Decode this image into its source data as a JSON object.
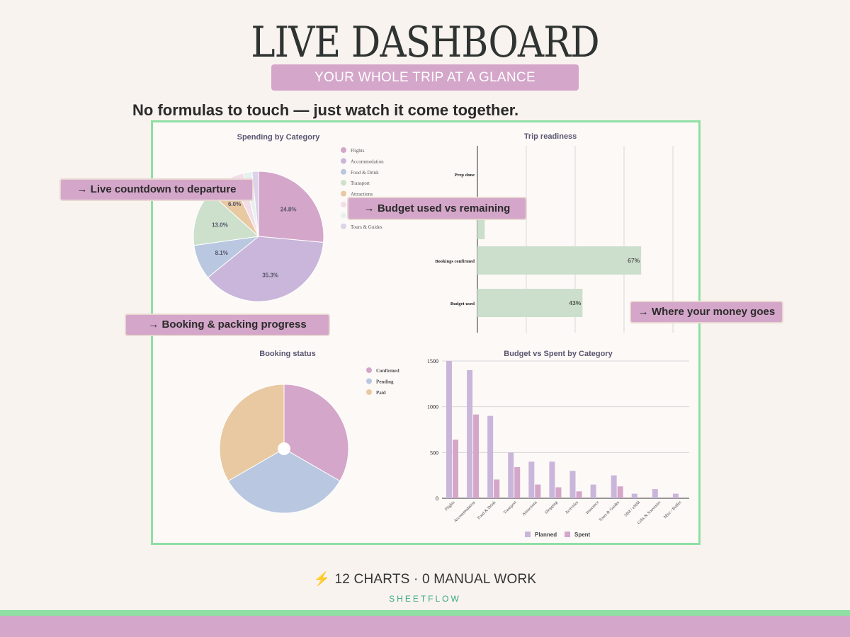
{
  "header": {
    "title": "LIVE DASHBOARD",
    "subtitle": "YOUR WHOLE TRIP AT A GLANCE",
    "tagline": "No formulas to touch — just watch it come together."
  },
  "callouts": {
    "countdown": "Live countdown to departure",
    "budget": "Budget used vs remaining",
    "booking": "Booking & packing progress",
    "money": "Where your money goes",
    "arrow": "→"
  },
  "footer": {
    "icon": "lightning-bolt-icon",
    "bolt_glyph": "⚡",
    "cta": "12 CHARTS · 0 MANUAL WORK",
    "brand": "SHEETFLOW"
  },
  "colors": {
    "accent_pink": "#d4a6c9",
    "accent_green": "#8fdfa3",
    "brand_teal": "#39a884"
  },
  "chart_data": [
    {
      "type": "pie",
      "title": "Spending by Category",
      "legend_position": "right",
      "labels": [
        "Flights",
        "Accommodation",
        "Food & Drink",
        "Transport",
        "Attractions",
        "",
        "",
        "Tours & Guides"
      ],
      "values": [
        24.8,
        35.3,
        8.1,
        13.0,
        6.0,
        3.0,
        2.0,
        1.5
      ],
      "slice_labels": [
        "24.8%",
        "35.3%",
        "8.1%",
        "13.0%",
        "6.0%",
        "",
        "",
        ""
      ],
      "colors": [
        "#d4a6c9",
        "#c9b6da",
        "#b9c8e0",
        "#cce0cc",
        "#e8c9a2",
        "#f3dde9",
        "#e6f1ee",
        "#dcd2ea"
      ]
    },
    {
      "type": "bar",
      "orientation": "horizontal",
      "title": "Trip readiness",
      "categories": [
        "Prep done",
        "",
        "Bookings confirmed",
        "Budget used"
      ],
      "values": [
        0,
        3,
        67,
        43
      ],
      "value_labels": [
        "",
        "",
        "67%",
        "43%"
      ],
      "xlim": [
        0,
        100
      ],
      "grid": true,
      "color": "#ccdfcc"
    },
    {
      "type": "pie",
      "title": "Booking status",
      "legend_position": "right",
      "labels": [
        "Confirmed",
        "Pending",
        "Paid"
      ],
      "values": [
        1,
        1,
        1
      ],
      "colors": [
        "#d4a6c9",
        "#b9c8e0",
        "#e8c9a2"
      ]
    },
    {
      "type": "bar",
      "title": "Budget vs Spent by Category",
      "legend_position": "bottom",
      "categories": [
        "Flights",
        "Accommodation",
        "Food & Drink",
        "Transport",
        "Attractions",
        "Shopping",
        "Activities",
        "Insurance",
        "Tours & Guides",
        "SIM / eSIM",
        "Gifts & Souvenirs",
        "Misc / Buffer"
      ],
      "series": [
        {
          "name": "Planned",
          "values": [
            1500,
            1400,
            900,
            500,
            400,
            400,
            300,
            150,
            250,
            50,
            100,
            50
          ],
          "color": "#c9b6da"
        },
        {
          "name": "Spent",
          "values": [
            640,
            915,
            205,
            340,
            150,
            120,
            75,
            0,
            130,
            0,
            0,
            0
          ],
          "color": "#d4a6c9"
        }
      ],
      "ylim": [
        0,
        1500
      ],
      "yticks": [
        "0",
        "500",
        "1000",
        "1500"
      ],
      "grid": true
    }
  ]
}
